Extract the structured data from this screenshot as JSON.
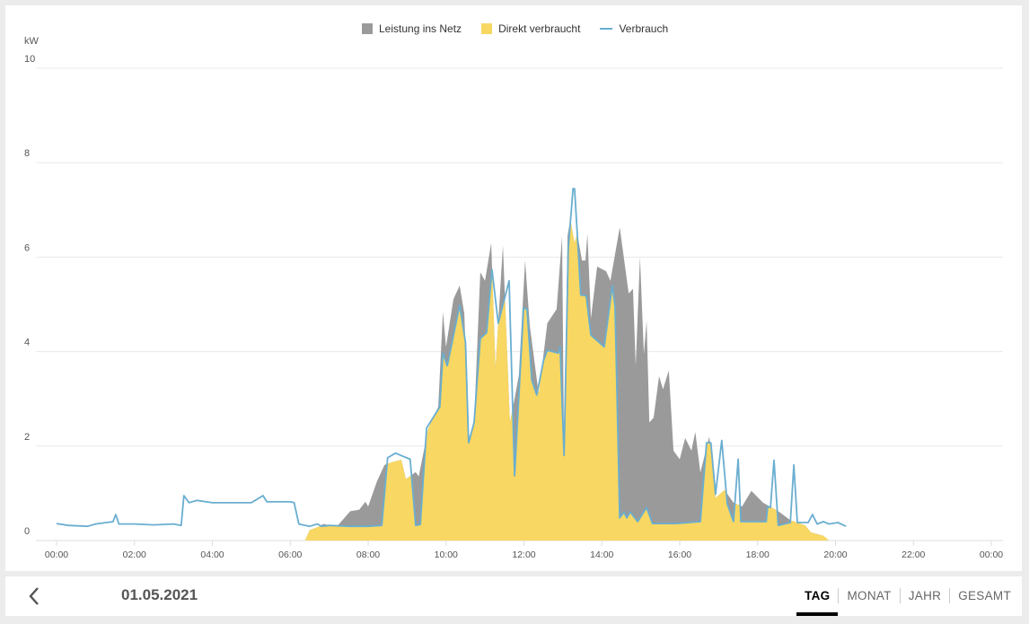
{
  "colors": {
    "grid": "#9a9a9a",
    "direct": "#f8d762",
    "consumption": "#6aaed0"
  },
  "footer": {
    "date": "01.05.2021",
    "tabs": [
      "TAG",
      "MONAT",
      "JAHR",
      "GESAMT"
    ],
    "active_tab": "TAG",
    "back_icon": "chevron-left-icon"
  },
  "chart_data": {
    "type": "area",
    "ylabel": "kW",
    "ylim": [
      0,
      10
    ],
    "yticks": [
      "0",
      "2",
      "4",
      "6",
      "8",
      "10"
    ],
    "xlim": [
      0,
      24
    ],
    "xticks": [
      "00:00",
      "02:00",
      "04:00",
      "06:00",
      "08:00",
      "10:00",
      "12:00",
      "14:00",
      "16:00",
      "18:00",
      "20:00",
      "22:00",
      "00:00"
    ],
    "legend": [
      "Leistung ins Netz",
      "Direkt verbraucht",
      "Verbrauch"
    ],
    "legend_position": "top-center",
    "production": [
      [
        6.38,
        0
      ],
      [
        6.5,
        0.22
      ],
      [
        6.7,
        0.28
      ],
      [
        6.85,
        0.35
      ],
      [
        7.2,
        0.3
      ],
      [
        7.54,
        0.62
      ],
      [
        7.77,
        0.65
      ],
      [
        7.93,
        0.82
      ],
      [
        8.0,
        0.72
      ],
      [
        8.23,
        1.26
      ],
      [
        8.42,
        1.6
      ],
      [
        8.58,
        1.65
      ],
      [
        8.85,
        1.71
      ],
      [
        8.97,
        1.3
      ],
      [
        9.22,
        1.45
      ],
      [
        9.3,
        1.36
      ],
      [
        9.54,
        2.36
      ],
      [
        9.8,
        2.83
      ],
      [
        9.92,
        4.84
      ],
      [
        10.0,
        4.1
      ],
      [
        10.19,
        5.11
      ],
      [
        10.35,
        5.4
      ],
      [
        10.47,
        4.8
      ],
      [
        10.58,
        2.07
      ],
      [
        10.72,
        2.5
      ],
      [
        10.88,
        5.68
      ],
      [
        11.0,
        5.5
      ],
      [
        11.16,
        6.3
      ],
      [
        11.27,
        3.65
      ],
      [
        11.46,
        6.25
      ],
      [
        11.64,
        2.5
      ],
      [
        11.76,
        3.0
      ],
      [
        11.87,
        3.5
      ],
      [
        12.03,
        5.93
      ],
      [
        12.15,
        4.55
      ],
      [
        12.38,
        3.1
      ],
      [
        12.6,
        4.6
      ],
      [
        12.84,
        4.9
      ],
      [
        12.98,
        6.45
      ],
      [
        13.03,
        1.8
      ],
      [
        13.12,
        6.45
      ],
      [
        13.19,
        6.8
      ],
      [
        13.3,
        6.3
      ],
      [
        13.37,
        6.5
      ],
      [
        13.49,
        5.93
      ],
      [
        13.58,
        5.93
      ],
      [
        13.63,
        6.5
      ],
      [
        13.72,
        4.7
      ],
      [
        13.88,
        5.8
      ],
      [
        14.11,
        5.7
      ],
      [
        14.22,
        5.5
      ],
      [
        14.46,
        6.63
      ],
      [
        14.69,
        5.23
      ],
      [
        14.8,
        5.33
      ],
      [
        14.87,
        3.7
      ],
      [
        14.98,
        6.0
      ],
      [
        15.08,
        3.95
      ],
      [
        15.15,
        4.65
      ],
      [
        15.22,
        2.5
      ],
      [
        15.33,
        2.6
      ],
      [
        15.47,
        3.48
      ],
      [
        15.57,
        3.2
      ],
      [
        15.72,
        3.6
      ],
      [
        15.84,
        1.9
      ],
      [
        16.0,
        1.72
      ],
      [
        16.14,
        2.17
      ],
      [
        16.3,
        1.9
      ],
      [
        16.4,
        2.3
      ],
      [
        16.53,
        1.44
      ],
      [
        16.76,
        2.2
      ],
      [
        16.92,
        0.9
      ],
      [
        17.15,
        1.07
      ],
      [
        17.38,
        0.8
      ],
      [
        17.6,
        0.72
      ],
      [
        17.84,
        1.05
      ],
      [
        18.14,
        0.8
      ],
      [
        18.53,
        0.62
      ],
      [
        18.84,
        0.43
      ],
      [
        19.22,
        0.32
      ],
      [
        19.37,
        0.17
      ],
      [
        19.69,
        0.1
      ],
      [
        19.83,
        0
      ]
    ],
    "consumption": [
      [
        0,
        0.36
      ],
      [
        0.3,
        0.32
      ],
      [
        0.8,
        0.3
      ],
      [
        1.0,
        0.35
      ],
      [
        1.45,
        0.4
      ],
      [
        1.52,
        0.55
      ],
      [
        1.6,
        0.35
      ],
      [
        2.0,
        0.35
      ],
      [
        2.5,
        0.33
      ],
      [
        3.0,
        0.35
      ],
      [
        3.2,
        0.32
      ],
      [
        3.27,
        0.95
      ],
      [
        3.4,
        0.8
      ],
      [
        3.6,
        0.85
      ],
      [
        4.0,
        0.8
      ],
      [
        4.5,
        0.8
      ],
      [
        5.0,
        0.8
      ],
      [
        5.2,
        0.9
      ],
      [
        5.3,
        0.95
      ],
      [
        5.4,
        0.82
      ],
      [
        6.0,
        0.82
      ],
      [
        6.1,
        0.8
      ],
      [
        6.22,
        0.35
      ],
      [
        6.5,
        0.3
      ],
      [
        6.7,
        0.35
      ],
      [
        6.8,
        0.3
      ],
      [
        7.0,
        0.32
      ],
      [
        7.5,
        0.3
      ],
      [
        8.0,
        0.3
      ],
      [
        8.35,
        0.32
      ],
      [
        8.5,
        1.75
      ],
      [
        8.7,
        1.85
      ],
      [
        9.08,
        1.72
      ],
      [
        9.22,
        0.32
      ],
      [
        9.34,
        0.34
      ],
      [
        9.5,
        2.38
      ],
      [
        9.84,
        2.83
      ],
      [
        9.92,
        3.97
      ],
      [
        10.03,
        3.7
      ],
      [
        10.35,
        4.98
      ],
      [
        10.5,
        4.2
      ],
      [
        10.58,
        2.07
      ],
      [
        10.72,
        2.5
      ],
      [
        10.88,
        4.28
      ],
      [
        11.04,
        4.4
      ],
      [
        11.18,
        5.74
      ],
      [
        11.34,
        4.6
      ],
      [
        11.62,
        5.5
      ],
      [
        11.76,
        1.37
      ],
      [
        11.99,
        4.92
      ],
      [
        12.08,
        4.9
      ],
      [
        12.2,
        3.4
      ],
      [
        12.33,
        3.08
      ],
      [
        12.5,
        3.8
      ],
      [
        12.6,
        4.03
      ],
      [
        12.88,
        3.97
      ],
      [
        12.93,
        4.1
      ],
      [
        13.03,
        1.8
      ],
      [
        13.14,
        6.18
      ],
      [
        13.26,
        7.45
      ],
      [
        13.3,
        7.45
      ],
      [
        13.37,
        6.5
      ],
      [
        13.46,
        5.2
      ],
      [
        13.6,
        5.18
      ],
      [
        13.72,
        4.35
      ],
      [
        14.06,
        4.1
      ],
      [
        14.27,
        5.4
      ],
      [
        14.34,
        4.95
      ],
      [
        14.46,
        0.48
      ],
      [
        14.57,
        0.6
      ],
      [
        14.64,
        0.48
      ],
      [
        14.73,
        0.6
      ],
      [
        14.92,
        0.4
      ],
      [
        15.15,
        0.7
      ],
      [
        15.3,
        0.36
      ],
      [
        15.9,
        0.36
      ],
      [
        16.53,
        0.4
      ],
      [
        16.69,
        2.07
      ],
      [
        16.8,
        2.07
      ],
      [
        16.92,
        0.98
      ],
      [
        17.08,
        2.12
      ],
      [
        17.22,
        0.78
      ],
      [
        17.38,
        0.4
      ],
      [
        17.5,
        1.72
      ],
      [
        17.57,
        0.4
      ],
      [
        18.22,
        0.4
      ],
      [
        18.26,
        0.72
      ],
      [
        18.33,
        0.7
      ],
      [
        18.42,
        1.7
      ],
      [
        18.53,
        0.32
      ],
      [
        18.84,
        0.38
      ],
      [
        18.93,
        1.6
      ],
      [
        19.02,
        0.38
      ],
      [
        19.3,
        0.38
      ],
      [
        19.41,
        0.55
      ],
      [
        19.53,
        0.35
      ],
      [
        19.69,
        0.4
      ],
      [
        19.83,
        0.35
      ],
      [
        20.06,
        0.38
      ],
      [
        20.27,
        0.3
      ]
    ]
  }
}
